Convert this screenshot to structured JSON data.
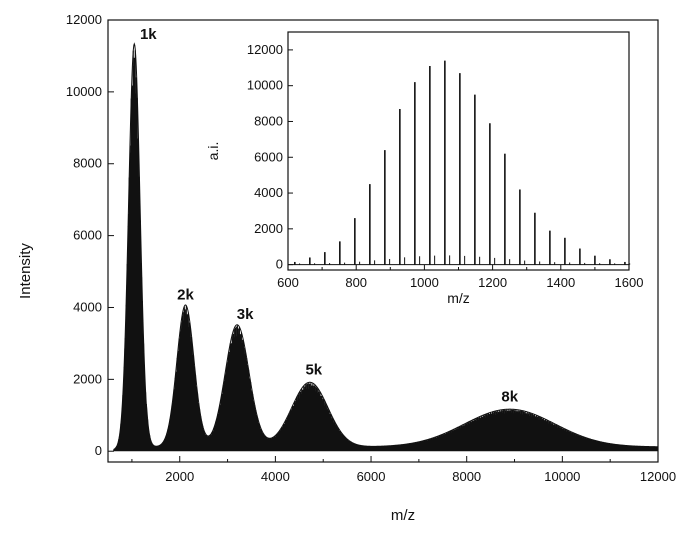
{
  "chart_data": [
    {
      "type": "line",
      "title": "",
      "xlabel": "m/z",
      "ylabel": "Intensity",
      "xlim": [
        500,
        12000
      ],
      "ylim": [
        -300,
        12000
      ],
      "x_ticks": [
        2000,
        4000,
        6000,
        8000,
        10000,
        12000
      ],
      "y_ticks": [
        0,
        2000,
        4000,
        6000,
        8000,
        10000,
        12000
      ],
      "grid": false,
      "legend": "none",
      "color": "#111111",
      "peaks": [
        {
          "label": "1k",
          "center": 1050,
          "height": 11300,
          "width": 120
        },
        {
          "label": "2k",
          "center": 2120,
          "height": 3950,
          "width": 180
        },
        {
          "label": "3k",
          "center": 3200,
          "height": 3400,
          "width": 250
        },
        {
          "label": "5k",
          "center": 4720,
          "height": 1800,
          "width": 380
        },
        {
          "label": "8k",
          "center": 8900,
          "height": 1050,
          "width": 950
        }
      ],
      "baseline": 120
    },
    {
      "type": "bar",
      "title": "",
      "xlabel": "m/z",
      "ylabel": "a.i.",
      "xlim": [
        600,
        1600
      ],
      "ylim": [
        -300,
        13000
      ],
      "x_ticks": [
        600,
        800,
        1000,
        1200,
        1400,
        1600
      ],
      "y_ticks": [
        0,
        2000,
        4000,
        6000,
        8000,
        10000,
        12000
      ],
      "grid": false,
      "color": "#111111",
      "x": [
        620,
        664,
        708,
        752,
        796,
        840,
        884,
        928,
        972,
        1016,
        1060,
        1104,
        1148,
        1192,
        1236,
        1280,
        1324,
        1368,
        1412,
        1456,
        1500,
        1544,
        1588
      ],
      "values": [
        150,
        400,
        700,
        1300,
        2600,
        4500,
        6400,
        8700,
        10200,
        11100,
        11400,
        10700,
        9500,
        7900,
        6200,
        4200,
        2900,
        1900,
        1500,
        900,
        500,
        300,
        150
      ]
    }
  ]
}
